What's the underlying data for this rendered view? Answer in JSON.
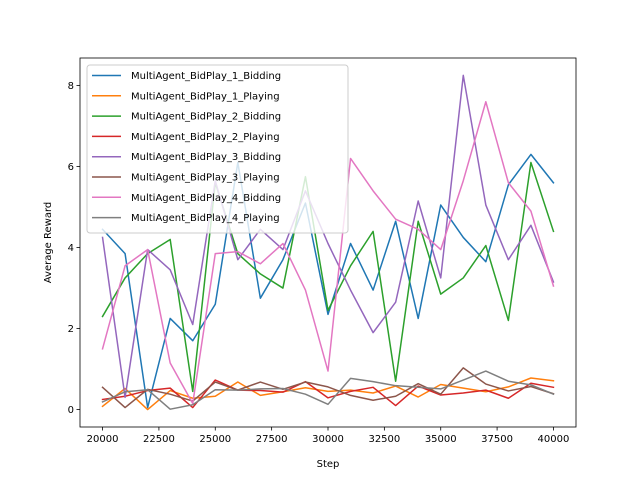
{
  "chart_data": {
    "type": "line",
    "xlabel": "Step",
    "ylabel": "Average Reward",
    "xlim": [
      19000,
      41000
    ],
    "ylim": [
      -0.43,
      8.68
    ],
    "xticks": [
      20000,
      22500,
      25000,
      27500,
      30000,
      32500,
      35000,
      37500,
      40000
    ],
    "yticks": [
      0,
      2,
      4,
      6,
      8
    ],
    "grid": false,
    "legend_position": "top-left",
    "x": [
      20000,
      21000,
      22000,
      23000,
      24000,
      25000,
      26000,
      27000,
      28000,
      29000,
      30000,
      31000,
      32000,
      33000,
      34000,
      35000,
      36000,
      37000,
      38000,
      39000,
      40000
    ],
    "series": [
      {
        "name": "MultiAgent_BidPlay_1_Bidding",
        "color": "#1f77b4",
        "values": [
          4.45,
          3.85,
          0.05,
          2.25,
          1.7,
          2.6,
          6.1,
          2.75,
          3.7,
          5.1,
          2.35,
          4.1,
          2.95,
          4.65,
          2.25,
          5.05,
          4.25,
          3.65,
          5.55,
          6.3,
          5.6
        ]
      },
      {
        "name": "MultiAgent_BidPlay_1_Playing",
        "color": "#ff7f0e",
        "values": [
          0.08,
          0.52,
          0.0,
          0.47,
          0.28,
          0.33,
          0.68,
          0.35,
          0.44,
          0.54,
          0.45,
          0.48,
          0.41,
          0.58,
          0.31,
          0.62,
          0.53,
          0.44,
          0.56,
          0.78,
          0.71
        ]
      },
      {
        "name": "MultiAgent_BidPlay_2_Bidding",
        "color": "#2ca02c",
        "values": [
          2.3,
          3.25,
          3.85,
          4.2,
          0.45,
          5.6,
          3.85,
          3.35,
          3.0,
          5.75,
          2.45,
          3.55,
          4.4,
          0.7,
          4.65,
          2.85,
          3.25,
          4.05,
          2.2,
          6.1,
          4.4
        ]
      },
      {
        "name": "MultiAgent_BidPlay_2_Playing",
        "color": "#d62728",
        "values": [
          0.25,
          0.33,
          0.47,
          0.53,
          0.05,
          0.73,
          0.48,
          0.47,
          0.43,
          0.69,
          0.29,
          0.45,
          0.55,
          0.1,
          0.58,
          0.36,
          0.41,
          0.48,
          0.28,
          0.65,
          0.55
        ]
      },
      {
        "name": "MultiAgent_BidPlay_3_Bidding",
        "color": "#9467bd",
        "values": [
          4.25,
          0.3,
          3.95,
          3.45,
          2.1,
          5.65,
          3.7,
          4.45,
          3.95,
          5.4,
          4.1,
          2.95,
          1.9,
          2.65,
          5.15,
          3.25,
          8.25,
          5.05,
          3.7,
          4.55,
          3.15
        ]
      },
      {
        "name": "MultiAgent_BidPlay_3_Playing",
        "color": "#8c564b",
        "values": [
          0.55,
          0.05,
          0.5,
          0.38,
          0.21,
          0.68,
          0.48,
          0.68,
          0.5,
          0.68,
          0.56,
          0.35,
          0.23,
          0.33,
          0.64,
          0.38,
          1.03,
          0.63,
          0.46,
          0.57,
          0.39
        ]
      },
      {
        "name": "MultiAgent_BidPlay_4_Bidding",
        "color": "#e377c2",
        "values": [
          1.5,
          3.55,
          3.95,
          1.15,
          0.15,
          3.85,
          3.9,
          3.6,
          4.1,
          2.95,
          0.95,
          6.2,
          5.4,
          4.7,
          4.45,
          3.95,
          5.65,
          7.6,
          5.6,
          4.9,
          3.05
        ]
      },
      {
        "name": "MultiAgent_BidPlay_4_Playing",
        "color": "#7f7f7f",
        "values": [
          0.19,
          0.44,
          0.49,
          0.01,
          0.12,
          0.49,
          0.48,
          0.51,
          0.52,
          0.38,
          0.13,
          0.77,
          0.69,
          0.59,
          0.55,
          0.51,
          0.73,
          0.95,
          0.7,
          0.61,
          0.38
        ]
      }
    ]
  }
}
